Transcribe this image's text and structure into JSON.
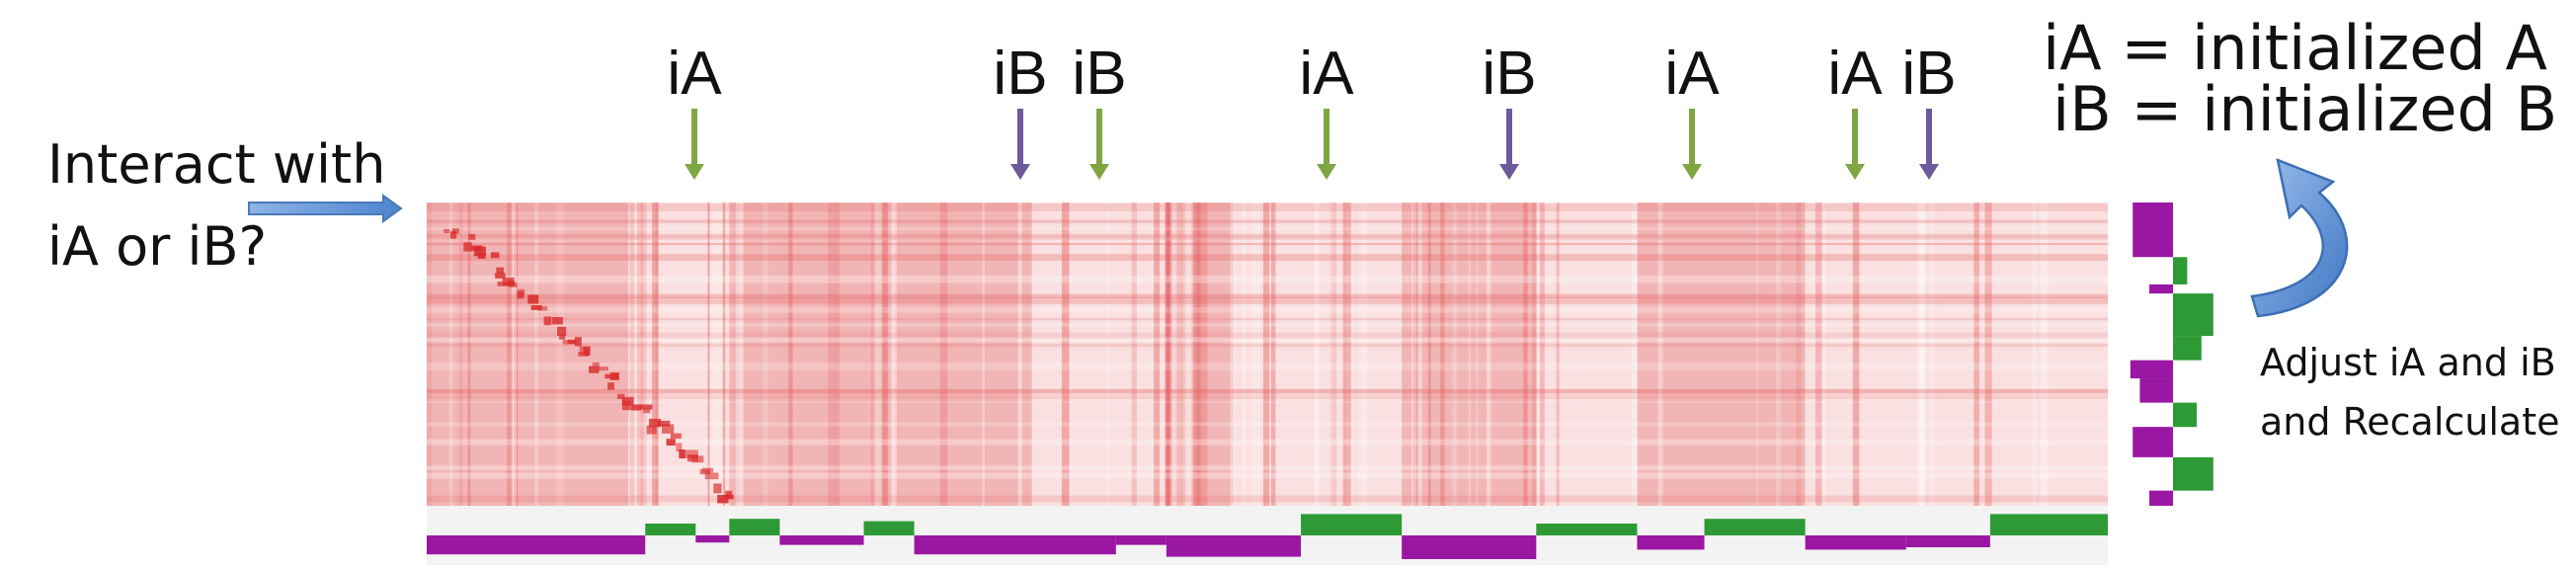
{
  "question": {
    "line1": "Interact with",
    "line2": "iA or iB?"
  },
  "legend": {
    "line1": "iA = initialized A",
    "line2": "iB = initialized B"
  },
  "adjust": {
    "line1": "Adjust iA and iB",
    "line2": "and Recalculate"
  },
  "markers": [
    {
      "label": "iA",
      "type": "A"
    },
    {
      "label": "iB",
      "type": "B"
    },
    {
      "label": "iB",
      "type": "A"
    },
    {
      "label": "iA",
      "type": "A"
    },
    {
      "label": "iB",
      "type": "B"
    },
    {
      "label": "iA",
      "type": "A"
    },
    {
      "label": "iA",
      "type": "A"
    },
    {
      "label": "iB",
      "type": "B"
    }
  ],
  "colors": {
    "heatmap": "#e85050",
    "compartment_a": "#2e9a35",
    "compartment_b": "#9a17a3",
    "arrow_a": "#7ea642",
    "arrow_b": "#6d5a9a",
    "pointer_arrow": "#5b8fd4"
  }
}
